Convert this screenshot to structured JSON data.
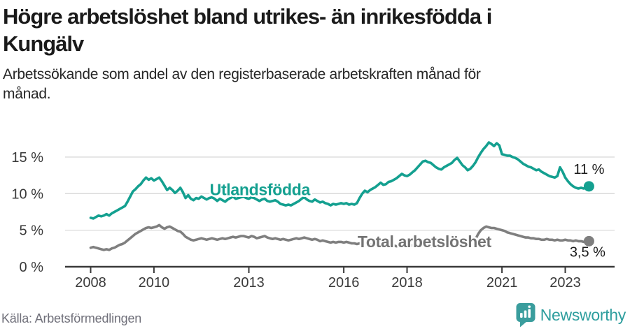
{
  "header": {
    "title_lines": [
      "Högre arbetslöshet bland utrikes- än inrikesfödda i",
      "Kungälv"
    ],
    "subtitle_lines": [
      "Arbetssökande som andel av den registerbaserade arbetskraften månad för",
      "månad."
    ]
  },
  "footer": {
    "source": "Källa: Arbetsförmedlingen",
    "brand": "Newsworthy"
  },
  "colors": {
    "accent_teal": "#14a090",
    "gray_line": "#7f7f7f",
    "gray_label": "#737373",
    "axis": "#3a3a3a",
    "grid": "#d9d9d9",
    "annotation": "#1a1a1a",
    "brand_teal": "#3a9d9d"
  },
  "chart_data": {
    "type": "line",
    "title": "Högre arbetslöshet bland utrikes- än inrikesfödda i Kungälv",
    "subtitle": "Arbetssökande som andel av den registerbaserade arbetskraften månad för månad.",
    "x_unit": "month",
    "x_start_year": 2008,
    "x_end": "2023-10",
    "x_ticks": [
      2008,
      2010,
      2013,
      2016,
      2018,
      2021,
      2023
    ],
    "y_ticks": [
      0,
      5,
      10,
      15
    ],
    "y_tick_suffix": " %",
    "ylim": [
      0,
      17.5
    ],
    "grid": true,
    "legend_position": "inline-labels",
    "series": [
      {
        "name": "Utlandsfödda",
        "color": "#14a090",
        "label_color": "#14a090",
        "end_label": "11 %",
        "label_pos": {
          "year": 2013.35,
          "value": 10.55
        },
        "values": [
          6.7,
          6.6,
          6.8,
          7.0,
          6.9,
          7.0,
          7.2,
          7.0,
          7.3,
          7.5,
          7.7,
          7.9,
          8.1,
          8.3,
          8.9,
          9.6,
          10.3,
          10.6,
          11.0,
          11.3,
          11.8,
          12.2,
          11.9,
          12.1,
          11.8,
          12.0,
          12.2,
          11.7,
          11.1,
          10.5,
          10.8,
          10.5,
          10.1,
          10.4,
          10.8,
          10.2,
          9.4,
          9.8,
          9.3,
          9.1,
          9.4,
          9.3,
          9.6,
          9.4,
          9.2,
          9.4,
          9.5,
          9.3,
          9.0,
          9.3,
          9.1,
          8.9,
          9.2,
          9.4,
          9.6,
          9.3,
          9.4,
          9.5,
          9.6,
          9.4,
          9.3,
          9.5,
          9.4,
          9.2,
          9.0,
          9.2,
          9.3,
          9.0,
          8.9,
          9.0,
          9.1,
          8.9,
          8.6,
          8.5,
          8.4,
          8.5,
          8.4,
          8.6,
          8.8,
          9.0,
          9.3,
          9.5,
          9.2,
          9.0,
          8.9,
          9.2,
          9.0,
          8.8,
          8.9,
          8.7,
          8.6,
          8.4,
          8.6,
          8.5,
          8.6,
          8.7,
          8.6,
          8.7,
          8.5,
          8.6,
          8.5,
          8.7,
          9.4,
          10.0,
          10.4,
          10.2,
          10.5,
          10.7,
          10.9,
          11.2,
          11.5,
          11.2,
          11.3,
          11.6,
          11.7,
          11.9,
          12.1,
          12.4,
          12.7,
          12.5,
          12.4,
          12.6,
          12.9,
          13.2,
          13.6,
          14.0,
          14.4,
          14.5,
          14.3,
          14.2,
          13.9,
          13.6,
          13.4,
          13.3,
          13.6,
          13.8,
          14.0,
          14.2,
          14.6,
          14.9,
          14.4,
          13.9,
          13.6,
          13.2,
          13.4,
          13.8,
          14.3,
          15.0,
          15.6,
          16.1,
          16.5,
          17.0,
          16.8,
          16.5,
          16.9,
          16.6,
          15.4,
          15.3,
          15.2,
          15.2,
          15.0,
          14.9,
          14.7,
          14.4,
          14.1,
          13.9,
          13.7,
          13.6,
          13.4,
          13.2,
          13.3,
          13.0,
          12.8,
          12.6,
          12.4,
          12.3,
          12.2,
          12.4,
          13.6,
          13.0,
          12.2,
          11.7,
          11.3,
          11.0,
          10.8,
          10.7,
          10.8,
          10.7,
          10.9,
          11.0
        ]
      },
      {
        "name": "Total arbetslöshet",
        "color": "#7f7f7f",
        "label_color": "#737373",
        "end_label": "3,5 %",
        "label_pos": {
          "year": 2018.55,
          "value": 3.45
        },
        "values": [
          2.6,
          2.7,
          2.6,
          2.5,
          2.4,
          2.3,
          2.4,
          2.3,
          2.5,
          2.6,
          2.8,
          3.0,
          3.1,
          3.3,
          3.6,
          3.9,
          4.2,
          4.5,
          4.7,
          4.9,
          5.1,
          5.3,
          5.4,
          5.3,
          5.4,
          5.5,
          5.7,
          5.4,
          5.2,
          5.4,
          5.5,
          5.3,
          5.1,
          4.9,
          4.8,
          4.5,
          4.1,
          3.9,
          3.7,
          3.6,
          3.7,
          3.8,
          3.9,
          3.8,
          3.7,
          3.8,
          3.9,
          3.8,
          3.7,
          3.8,
          3.9,
          3.8,
          3.9,
          4.0,
          4.1,
          4.0,
          4.1,
          4.2,
          4.2,
          4.1,
          4.0,
          4.2,
          4.1,
          3.9,
          4.0,
          4.1,
          4.2,
          4.0,
          3.9,
          3.8,
          3.9,
          3.8,
          3.7,
          3.8,
          3.7,
          3.6,
          3.7,
          3.8,
          3.9,
          3.8,
          3.9,
          4.0,
          3.9,
          3.8,
          3.7,
          3.8,
          3.7,
          3.5,
          3.6,
          3.5,
          3.4,
          3.3,
          3.4,
          3.3,
          3.4,
          3.4,
          3.3,
          3.4,
          3.3,
          3.2,
          3.2,
          3.1,
          3.2,
          3.1,
          3.0,
          3.1,
          3.0,
          3.1,
          3.0,
          3.1,
          3.0,
          2.9,
          3.0,
          2.9,
          3.0,
          2.9,
          2.8,
          2.9,
          2.9,
          3.0,
          2.9,
          3.0,
          2.9,
          2.8,
          2.9,
          2.8,
          2.9,
          2.8,
          2.7,
          2.8,
          2.8,
          2.9,
          2.8,
          2.9,
          2.8,
          2.8,
          2.9,
          2.9,
          3.0,
          2.9,
          2.9,
          3.0,
          3.0,
          3.1,
          3.2,
          3.3,
          3.8,
          4.5,
          5.0,
          5.3,
          5.5,
          5.4,
          5.3,
          5.3,
          5.2,
          5.1,
          5.0,
          4.9,
          4.7,
          4.6,
          4.5,
          4.4,
          4.3,
          4.2,
          4.1,
          4.0,
          4.0,
          3.9,
          3.9,
          3.8,
          3.8,
          3.7,
          3.7,
          3.8,
          3.7,
          3.7,
          3.6,
          3.7,
          3.6,
          3.6,
          3.7,
          3.6,
          3.6,
          3.5,
          3.6,
          3.5,
          3.5,
          3.4,
          3.5,
          3.5
        ]
      }
    ]
  }
}
